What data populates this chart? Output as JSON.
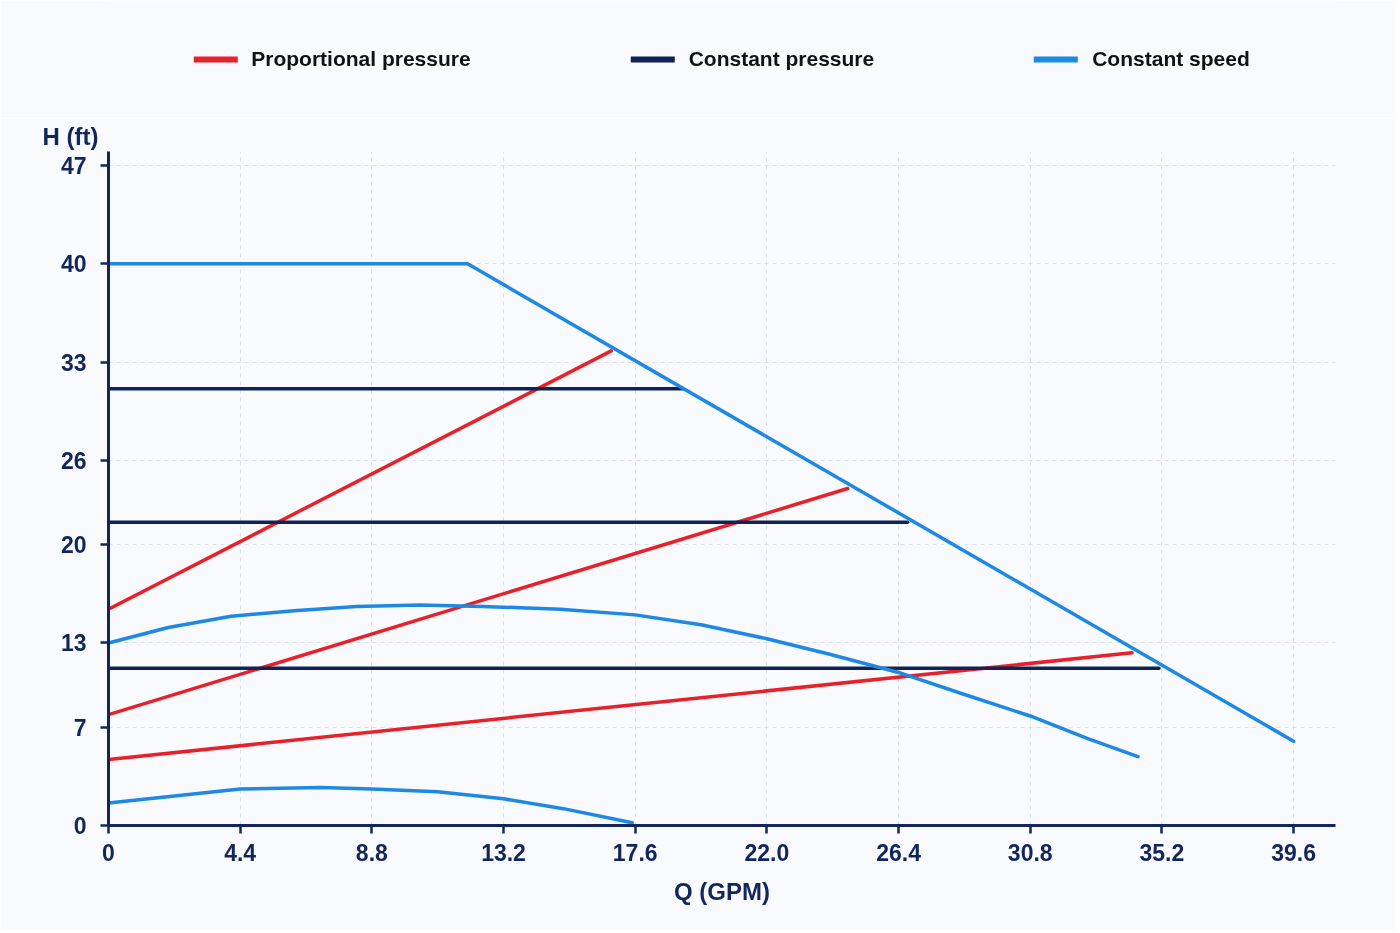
{
  "chart_data": {
    "type": "line",
    "xlabel": "Q (GPM)",
    "ylabel": "H (ft)",
    "xlim": [
      0,
      41
    ],
    "ylim": [
      0,
      48
    ],
    "xticks": [
      0,
      4.4,
      8.8,
      13.2,
      17.6,
      {
        "value": 22.0,
        "label": "22.0"
      },
      26.4,
      30.8,
      35.2,
      39.6
    ],
    "yticks": [
      0,
      7,
      13,
      20,
      26,
      33,
      40,
      47
    ],
    "grid": true,
    "legend": "top",
    "series": [
      {
        "name": "Proportional pressure",
        "color": "#e8202a",
        "x": [
          0,
          16.8
        ],
        "values": [
          15.4,
          33.8
        ]
      },
      {
        "color": "#e8202a",
        "x": [
          0,
          24.7
        ],
        "values": [
          7.9,
          24.0
        ]
      },
      {
        "color": "#e8202a",
        "x": [
          0,
          34.2
        ],
        "values": [
          4.7,
          12.3
        ]
      },
      {
        "name": "Constant pressure",
        "color": "#0f2356",
        "x": [
          0,
          19.2
        ],
        "values": [
          31.1,
          31.1
        ]
      },
      {
        "color": "#0f2356",
        "x": [
          0,
          26.7
        ],
        "values": [
          21.6,
          21.6
        ]
      },
      {
        "color": "#0f2356",
        "x": [
          0,
          35.1
        ],
        "values": [
          11.2,
          11.2
        ]
      },
      {
        "name": "Constant speed",
        "color": "#1e88e5",
        "x": [
          0,
          12.0,
          39.6
        ],
        "values": [
          40.0,
          40.0,
          6.0
        ]
      },
      {
        "color": "#1e88e5",
        "x": [
          0,
          2.0,
          4.1,
          6.2,
          8.3,
          10.4,
          12.5,
          15.1,
          17.6,
          19.8,
          22.0,
          24.1,
          26.4,
          28.5,
          30.8,
          32.7,
          34.4
        ],
        "values": [
          13.0,
          14.1,
          14.9,
          15.3,
          15.6,
          15.7,
          15.6,
          15.4,
          15.0,
          14.3,
          13.3,
          12.2,
          10.9,
          9.4,
          7.8,
          6.2,
          4.9
        ]
      },
      {
        "color": "#1e88e5",
        "x": [
          0,
          2.2,
          4.4,
          7.1,
          8.8,
          11.0,
          13.2,
          15.2,
          17.5
        ],
        "values": [
          1.6,
          2.1,
          2.6,
          2.7,
          2.6,
          2.4,
          1.9,
          1.2,
          0.2
        ]
      }
    ]
  }
}
